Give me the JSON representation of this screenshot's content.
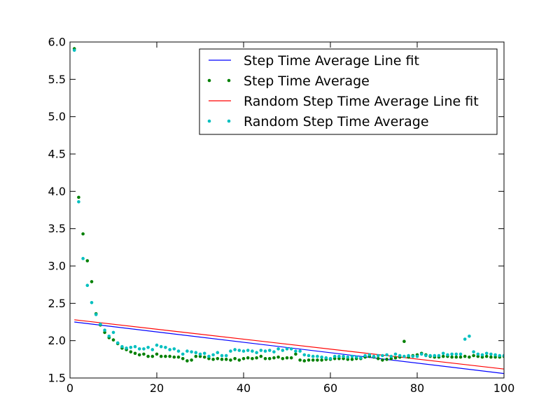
{
  "chart_data": {
    "type": "scatter",
    "title": "",
    "xlabel": "",
    "ylabel": "",
    "xlim": [
      0,
      100
    ],
    "ylim": [
      1.5,
      6.0
    ],
    "grid": false,
    "legend_placement": "top-right",
    "x_ticks": [
      0,
      20,
      40,
      60,
      80,
      100
    ],
    "x_tick_labels": [
      "0",
      "20",
      "40",
      "60",
      "80",
      "100"
    ],
    "y_ticks": [
      1.5,
      2.0,
      2.5,
      3.0,
      3.5,
      4.0,
      4.5,
      5.0,
      5.5,
      6.0
    ],
    "y_tick_labels": [
      "1.5",
      "2.0",
      "2.5",
      "3.0",
      "3.5",
      "4.0",
      "4.5",
      "5.0",
      "5.5",
      "6.0"
    ],
    "legend": [
      {
        "label": "Step Time Average Line fit",
        "color": "#0000ff",
        "kind": "line"
      },
      {
        "label": "Step Time Average",
        "color": "#008000",
        "kind": "points"
      },
      {
        "label": "Random Step Time Average Line fit",
        "color": "#ff0000",
        "kind": "line"
      },
      {
        "label": "Random Step Time Average",
        "color": "#00bfbf",
        "kind": "points"
      }
    ],
    "series": [
      {
        "name": "Step Time Average Line fit",
        "kind": "line",
        "color": "#0000ff",
        "x": [
          1,
          100
        ],
        "y": [
          2.25,
          1.56
        ]
      },
      {
        "name": "Random Step Time Average Line fit",
        "kind": "line",
        "color": "#ff0000",
        "x": [
          1,
          100
        ],
        "y": [
          2.28,
          1.62
        ]
      },
      {
        "name": "Step Time Average",
        "kind": "points",
        "color": "#008000",
        "x": [
          1,
          2,
          3,
          4,
          5,
          6,
          7,
          8,
          9,
          10,
          11,
          12,
          13,
          14,
          15,
          16,
          17,
          18,
          19,
          20,
          21,
          22,
          23,
          24,
          25,
          26,
          27,
          28,
          29,
          30,
          31,
          32,
          33,
          34,
          35,
          36,
          37,
          38,
          39,
          40,
          41,
          42,
          43,
          44,
          45,
          46,
          47,
          48,
          49,
          50,
          51,
          52,
          53,
          54,
          55,
          56,
          57,
          58,
          59,
          60,
          61,
          62,
          63,
          64,
          65,
          66,
          67,
          68,
          69,
          70,
          71,
          72,
          73,
          74,
          75,
          76,
          77,
          78,
          79,
          80,
          81,
          82,
          83,
          84,
          85,
          86,
          87,
          88,
          89,
          90,
          91,
          92,
          93,
          94,
          95,
          96,
          97,
          98,
          99,
          100
        ],
        "y": [
          5.91,
          3.92,
          3.43,
          3.07,
          2.79,
          2.36,
          2.21,
          2.11,
          2.04,
          2.01,
          1.96,
          1.9,
          1.88,
          1.85,
          1.83,
          1.81,
          1.82,
          1.79,
          1.79,
          1.82,
          1.79,
          1.79,
          1.79,
          1.78,
          1.78,
          1.76,
          1.73,
          1.74,
          1.79,
          1.79,
          1.78,
          1.76,
          1.75,
          1.76,
          1.75,
          1.75,
          1.74,
          1.76,
          1.74,
          1.76,
          1.77,
          1.76,
          1.77,
          1.79,
          1.76,
          1.76,
          1.77,
          1.78,
          1.76,
          1.77,
          1.77,
          1.82,
          1.74,
          1.73,
          1.74,
          1.74,
          1.74,
          1.74,
          1.75,
          1.75,
          1.76,
          1.76,
          1.76,
          1.75,
          1.75,
          1.76,
          1.76,
          1.78,
          1.79,
          1.78,
          1.76,
          1.74,
          1.75,
          1.76,
          1.77,
          1.78,
          1.99,
          1.78,
          1.8,
          1.81,
          1.83,
          1.81,
          1.79,
          1.78,
          1.78,
          1.79,
          1.79,
          1.78,
          1.78,
          1.78,
          1.79,
          1.78,
          1.8,
          1.79,
          1.78,
          1.79,
          1.78,
          1.78,
          1.78,
          1.79
        ]
      },
      {
        "name": "Random Step Time Average",
        "kind": "points",
        "color": "#00bfbf",
        "x": [
          1,
          2,
          3,
          4,
          5,
          6,
          7,
          8,
          9,
          10,
          11,
          12,
          13,
          14,
          15,
          16,
          17,
          18,
          19,
          20,
          21,
          22,
          23,
          24,
          25,
          26,
          27,
          28,
          29,
          30,
          31,
          32,
          33,
          34,
          35,
          36,
          37,
          38,
          39,
          40,
          41,
          42,
          43,
          44,
          45,
          46,
          47,
          48,
          49,
          50,
          51,
          52,
          53,
          54,
          55,
          56,
          57,
          58,
          59,
          60,
          61,
          62,
          63,
          64,
          65,
          66,
          67,
          68,
          69,
          70,
          71,
          72,
          73,
          74,
          75,
          76,
          77,
          78,
          79,
          80,
          81,
          82,
          83,
          84,
          85,
          86,
          87,
          88,
          89,
          90,
          91,
          92,
          93,
          94,
          95,
          96,
          97,
          98,
          99,
          100
        ],
        "y": [
          5.89,
          3.86,
          3.1,
          2.74,
          2.51,
          2.35,
          2.22,
          2.14,
          2.06,
          2.11,
          1.97,
          1.92,
          1.9,
          1.91,
          1.92,
          1.89,
          1.89,
          1.91,
          1.88,
          1.94,
          1.92,
          1.91,
          1.88,
          1.89,
          1.86,
          1.82,
          1.86,
          1.85,
          1.84,
          1.82,
          1.83,
          1.79,
          1.81,
          1.84,
          1.8,
          1.8,
          1.86,
          1.88,
          1.87,
          1.86,
          1.87,
          1.86,
          1.84,
          1.87,
          1.86,
          1.87,
          1.85,
          1.89,
          1.87,
          1.89,
          1.89,
          1.86,
          1.86,
          1.81,
          1.8,
          1.79,
          1.79,
          1.78,
          1.77,
          1.76,
          1.79,
          1.79,
          1.79,
          1.78,
          1.79,
          1.78,
          1.77,
          1.8,
          1.81,
          1.79,
          1.8,
          1.8,
          1.81,
          1.79,
          1.82,
          1.8,
          1.79,
          1.8,
          1.79,
          1.79,
          1.82,
          1.8,
          1.8,
          1.8,
          1.8,
          1.83,
          1.81,
          1.82,
          1.82,
          1.82,
          2.02,
          2.06,
          1.85,
          1.82,
          1.81,
          1.83,
          1.82,
          1.81,
          1.8,
          1.8
        ]
      }
    ]
  }
}
